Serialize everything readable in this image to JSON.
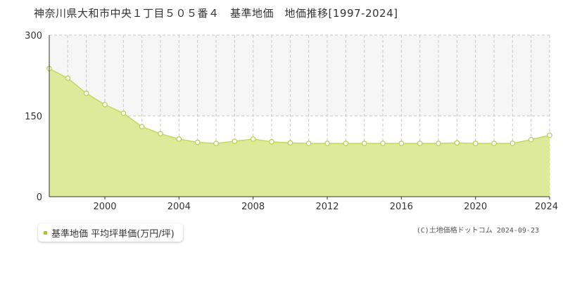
{
  "header": {
    "title": "神奈川県大和市中央１丁目５０５番４　基準地価　地価推移[1997-2024]"
  },
  "legend": {
    "label": "基準地価 平均坪単価(万円/坪)"
  },
  "footer": {
    "copyright": "(C)土地価格ドットコム 2024-09-23"
  },
  "colors": {
    "fill": "#dcea9a",
    "line": "#c0da60",
    "marker_stroke": "#b5d04a",
    "band": "#f6f6f6",
    "grid": "#c8c8c8"
  },
  "chart_data": {
    "type": "area",
    "title": "",
    "xlabel": "",
    "ylabel": "",
    "xlim": [
      1997,
      2024
    ],
    "ylim": [
      0,
      300
    ],
    "y_ticks": [
      0,
      150,
      300
    ],
    "x_ticks": [
      2000,
      2004,
      2008,
      2012,
      2016,
      2020,
      2024
    ],
    "grid": true,
    "legend_position": "bottom-left",
    "series": [
      {
        "name": "基準地価 平均坪単価(万円/坪)",
        "x": [
          1997,
          1998,
          1999,
          2000,
          2001,
          2002,
          2003,
          2004,
          2005,
          2006,
          2007,
          2008,
          2009,
          2010,
          2011,
          2012,
          2013,
          2014,
          2015,
          2016,
          2017,
          2018,
          2019,
          2020,
          2021,
          2022,
          2023,
          2024
        ],
        "values": [
          238,
          220,
          192,
          171,
          155,
          130,
          117,
          107,
          101,
          99,
          103,
          107,
          102,
          100,
          99,
          99,
          99,
          99,
          99,
          99,
          99,
          99,
          100,
          99,
          99,
          99,
          106,
          114
        ]
      }
    ]
  }
}
